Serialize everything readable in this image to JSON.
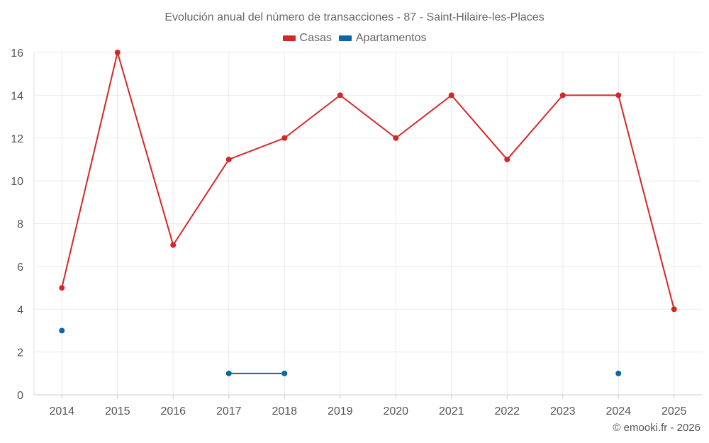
{
  "chart_data": {
    "type": "line",
    "title": "Evolución anual del número de transacciones - 87 - Saint-Hilaire-les-Places",
    "xlabel": "",
    "ylabel": "",
    "categories": [
      "2014",
      "2015",
      "2016",
      "2017",
      "2018",
      "2019",
      "2020",
      "2021",
      "2022",
      "2023",
      "2024",
      "2025"
    ],
    "ylim": [
      0,
      16
    ],
    "yticks": [
      0,
      2,
      4,
      6,
      8,
      10,
      12,
      14,
      16
    ],
    "grid": true,
    "legend_position": "top-center",
    "series": [
      {
        "name": "Casas",
        "color": "#d62728",
        "values": [
          5,
          16,
          7,
          11,
          12,
          14,
          12,
          14,
          11,
          14,
          14,
          4
        ]
      },
      {
        "name": "Apartamentos",
        "color": "#0868a8",
        "values": [
          3,
          null,
          null,
          1,
          1,
          null,
          null,
          null,
          null,
          null,
          1,
          null
        ]
      }
    ]
  },
  "footer": {
    "credit": "© emooki.fr - 2026"
  }
}
